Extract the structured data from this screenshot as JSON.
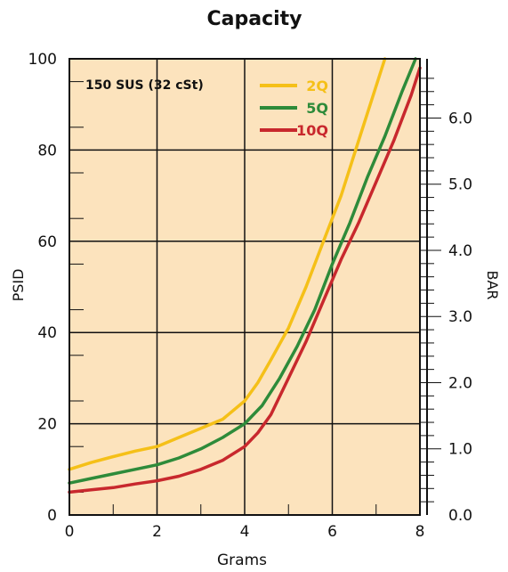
{
  "chart_data": {
    "type": "line",
    "title": "Capacity",
    "xlabel": "Grams",
    "ylabel": "PSID",
    "y2label": "BAR",
    "annotation": "150 SUS (32 cSt)",
    "xlim": [
      0,
      8
    ],
    "ylim": [
      0,
      100
    ],
    "y2lim": [
      0,
      6.895
    ],
    "x_ticks": [
      "0",
      "2",
      "4",
      "6",
      "8"
    ],
    "y_ticks": [
      "0",
      "20",
      "40",
      "60",
      "80",
      "100"
    ],
    "y2_ticks": [
      "0.0",
      "1.0",
      "2.0",
      "3.0",
      "4.0",
      "5.0",
      "6.0"
    ],
    "grid": true,
    "legend_position": "top-right inside",
    "colors": {
      "background": "#fce3bd",
      "grid": "#111111",
      "2Q": "#f5c018",
      "5Q": "#2e8b3a",
      "10Q": "#c8282d"
    },
    "series": [
      {
        "name": "2Q",
        "x": [
          0,
          0.5,
          1,
          1.5,
          2,
          2.5,
          3,
          3.5,
          4,
          4.3,
          4.6,
          5,
          5.4,
          5.8,
          6.2,
          6.6,
          6.9,
          7.2
        ],
        "y": [
          10,
          11.5,
          12.8,
          14,
          15,
          17,
          19,
          21,
          25,
          29,
          34,
          41,
          50,
          60,
          70,
          82,
          91,
          100
        ]
      },
      {
        "name": "5Q",
        "x": [
          0,
          0.5,
          1,
          1.5,
          2,
          2.5,
          3,
          3.5,
          4,
          4.4,
          4.8,
          5.2,
          5.6,
          6,
          6.4,
          6.8,
          7.2,
          7.6,
          7.9
        ],
        "y": [
          7,
          8,
          9,
          10,
          11,
          12.5,
          14.5,
          17,
          20,
          24,
          30,
          37,
          45,
          55,
          64,
          74,
          83,
          93,
          100
        ]
      },
      {
        "name": "10Q",
        "x": [
          0,
          0.5,
          1,
          1.5,
          2,
          2.5,
          3,
          3.5,
          4,
          4.3,
          4.6,
          5,
          5.4,
          5.8,
          6.2,
          6.6,
          7,
          7.4,
          7.8,
          8
        ],
        "y": [
          5,
          5.5,
          6,
          6.8,
          7.5,
          8.5,
          10,
          12,
          15,
          18,
          22,
          30,
          38,
          47,
          56,
          64,
          73,
          82,
          92,
          98
        ]
      }
    ]
  }
}
